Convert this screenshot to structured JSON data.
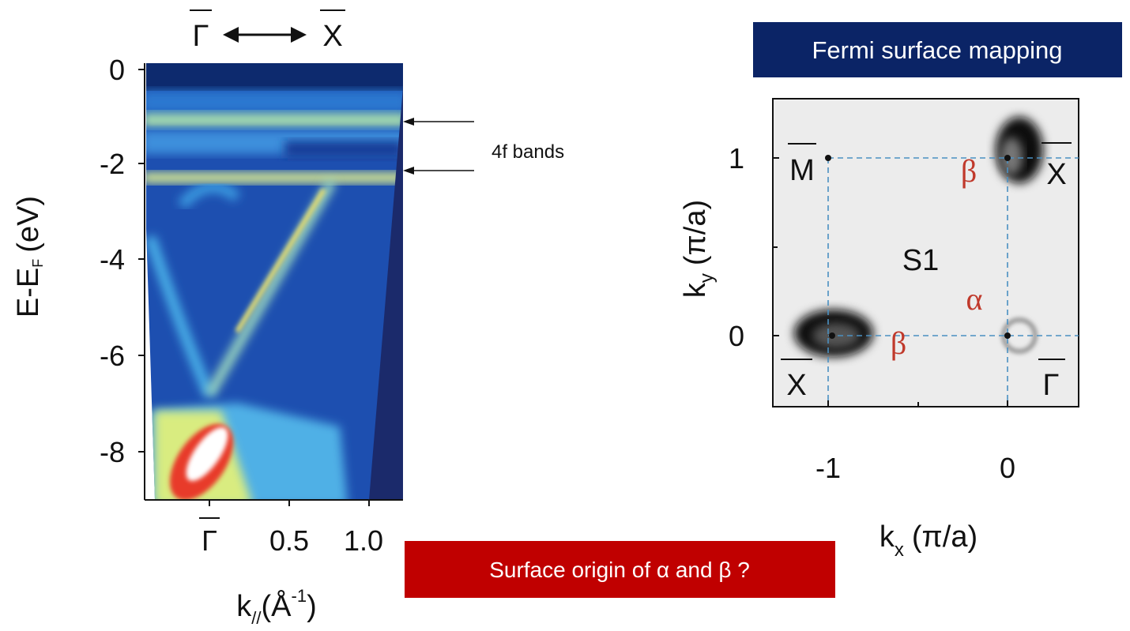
{
  "left_figure": {
    "direction_label": {
      "from": "Γ",
      "to": "X"
    },
    "y_label": {
      "main": "E-E",
      "sub": "F",
      "unit": "(eV)"
    },
    "y_ticks": [
      "0",
      "-2",
      "-4",
      "-6",
      "-8"
    ],
    "x_ticks": [
      "Γ",
      "0.5",
      "1.0"
    ],
    "x_label": {
      "main": "k",
      "sub": "//",
      "unit": "(Å",
      "sup": "-1",
      "close": ")"
    }
  },
  "annotation": "4f bands",
  "right_figure": {
    "title": "Fermi surface mapping",
    "y_label": {
      "main": "k",
      "sub": "y",
      "unit": "(π/a)"
    },
    "y_ticks": [
      "1",
      "0"
    ],
    "x_ticks": [
      "-1",
      "0"
    ],
    "x_label": {
      "main": "k",
      "sub": "x",
      "unit": "(π/a)"
    },
    "points": [
      "M",
      "X",
      "X",
      "Γ"
    ],
    "region": "S1",
    "bands": [
      "β",
      "α",
      "β"
    ]
  },
  "callout": "Surface origin of α and β ?"
}
